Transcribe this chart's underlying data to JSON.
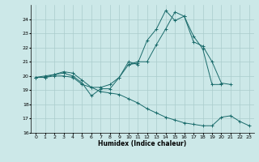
{
  "title": "",
  "xlabel": "Humidex (Indice chaleur)",
  "background_color": "#cce8e8",
  "grid_color": "#aacccc",
  "line_color": "#1a6b6b",
  "xlim": [
    -0.5,
    23.5
  ],
  "ylim": [
    16,
    25
  ],
  "yticks": [
    16,
    17,
    18,
    19,
    20,
    21,
    22,
    23,
    24
  ],
  "xticks": [
    0,
    1,
    2,
    3,
    4,
    5,
    6,
    7,
    8,
    9,
    10,
    11,
    12,
    13,
    14,
    15,
    16,
    17,
    18,
    19,
    20,
    21,
    22,
    23
  ],
  "series": [
    [
      null,
      null,
      null,
      null,
      null,
      null,
      null,
      null,
      null,
      null,
      20.8,
      20.9,
      22.5,
      23.3,
      24.6,
      23.9,
      24.2,
      22.8,
      21.9,
      19.4,
      19.4,
      null,
      null,
      null
    ],
    [
      19.9,
      20.0,
      20.1,
      20.2,
      20.0,
      19.5,
      18.6,
      19.1,
      19.1,
      19.9,
      21.0,
      20.8,
      null,
      null,
      null,
      null,
      null,
      null,
      null,
      null,
      null,
      null,
      null,
      null
    ],
    [
      19.9,
      19.9,
      20.1,
      20.3,
      20.2,
      19.7,
      19.2,
      19.2,
      19.4,
      19.9,
      20.8,
      21.0,
      21.0,
      22.2,
      23.3,
      24.5,
      24.2,
      22.4,
      22.1,
      21.0,
      19.5,
      19.4,
      null,
      null
    ],
    [
      19.9,
      19.9,
      20.0,
      20.0,
      19.9,
      19.4,
      19.2,
      18.9,
      18.8,
      18.7,
      18.4,
      18.1,
      17.7,
      17.4,
      17.1,
      16.9,
      16.7,
      16.6,
      16.5,
      16.5,
      17.1,
      17.2,
      16.8,
      16.5
    ]
  ]
}
